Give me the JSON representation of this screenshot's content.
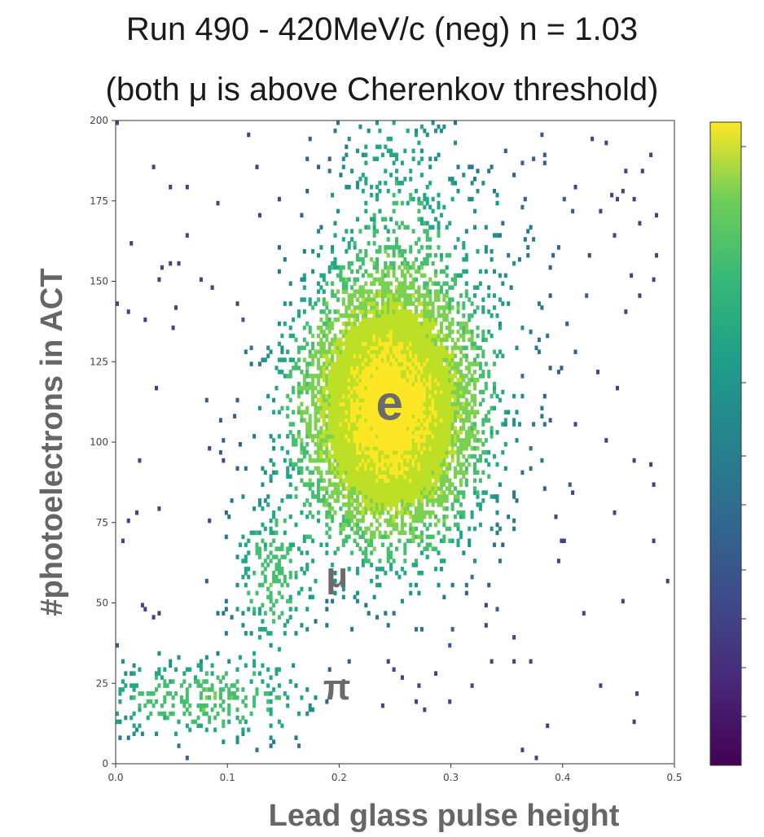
{
  "chart_data": {
    "type": "heatmap",
    "title": "Run 490 - 420MeV/c (neg) n = 1.03",
    "subtitle": "(both μ is above Cherenkov threshold)",
    "xlabel": "Lead glass pulse height",
    "ylabel": "#photoelectrons in ACT",
    "xlim": [
      0.0,
      0.5
    ],
    "ylim": [
      0,
      200
    ],
    "xticks": [
      "0.0",
      "0.1",
      "0.2",
      "0.3",
      "0.4",
      "0.5"
    ],
    "yticks": [
      "0",
      "25",
      "50",
      "75",
      "100",
      "125",
      "150",
      "175",
      "200"
    ],
    "colormap": "viridis",
    "colorbar": {
      "scale": "log"
    },
    "populations": [
      {
        "label": "e",
        "center_x": 0.245,
        "center_y": 110
      },
      {
        "label": "μ",
        "center_x": 0.14,
        "center_y": 58
      },
      {
        "label": "π",
        "center_x": 0.08,
        "center_y": 20
      }
    ],
    "annotations": [
      {
        "text": "e",
        "x": 0.245,
        "y": 107
      },
      {
        "text": "μ",
        "x": 0.198,
        "y": 55
      },
      {
        "text": "π",
        "x": 0.198,
        "y": 20
      }
    ]
  },
  "colors": {
    "viridis_low": "#440154",
    "viridis_mid": "#21918c",
    "viridis_high": "#fde725",
    "annotation": "#6b6b6b"
  }
}
